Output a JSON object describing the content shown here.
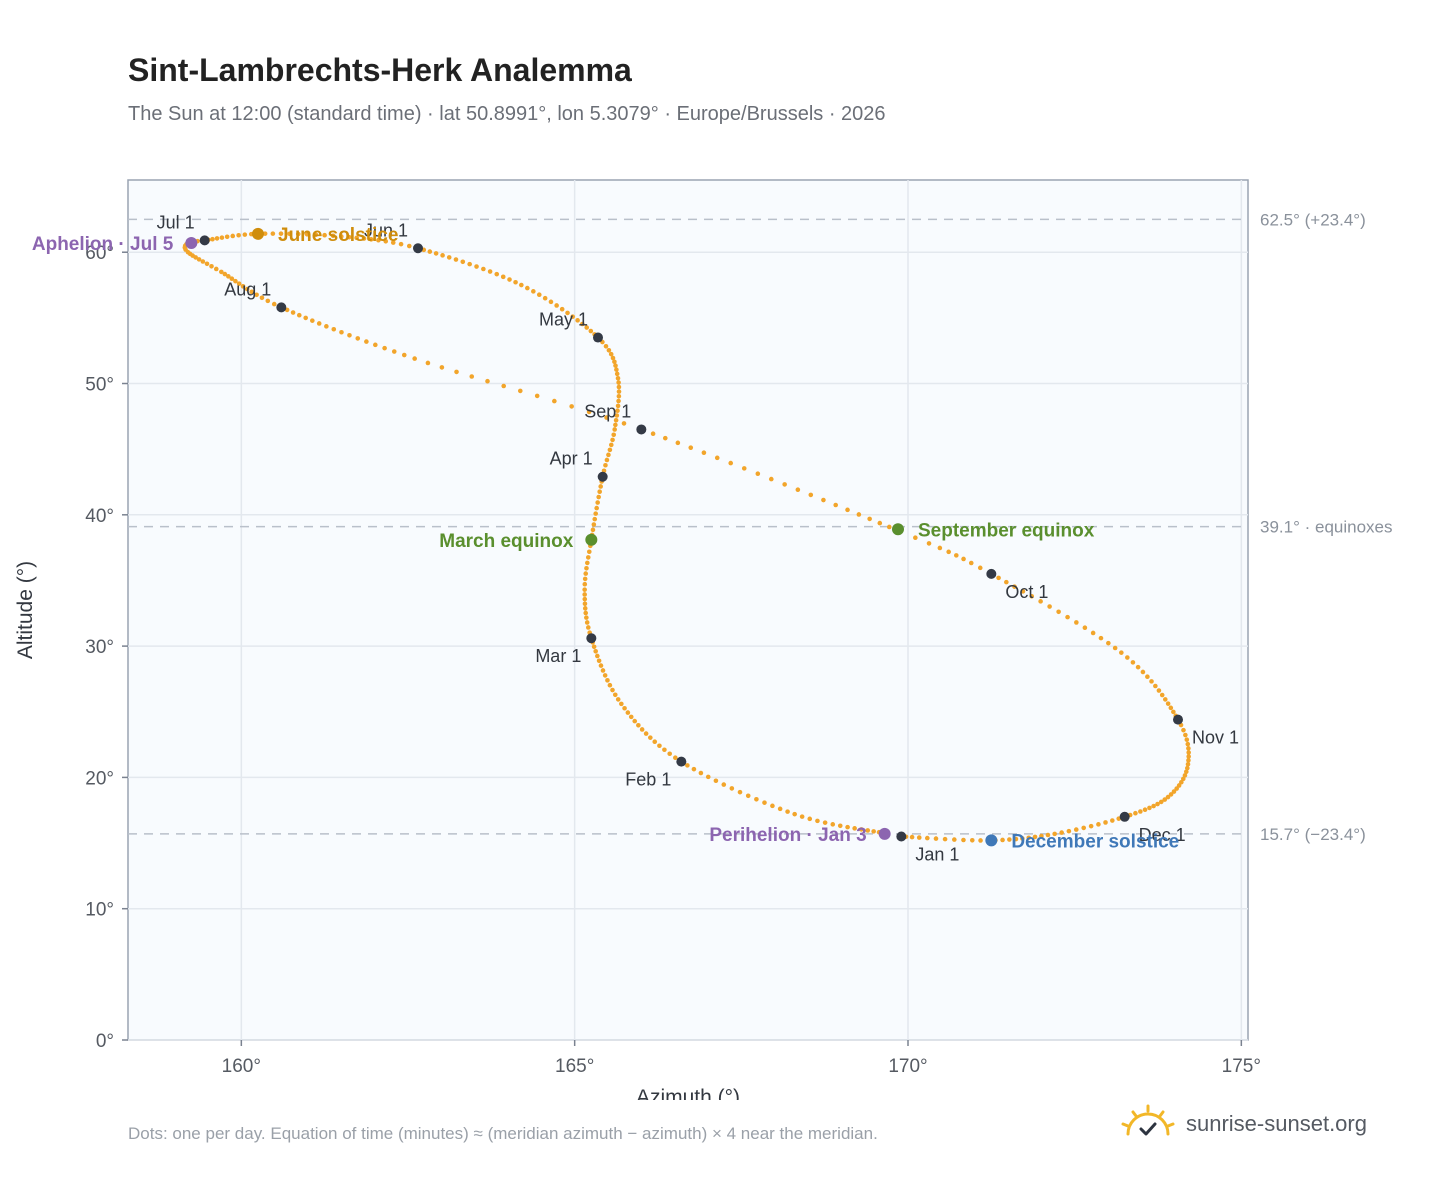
{
  "header": {
    "title": "Sint-Lambrechts-Herk Analemma",
    "subtitle": "The Sun at 12:00 (standard time) · lat 50.8991°, lon 5.3079° · Europe/Brussels · 2026"
  },
  "footer": {
    "note": "Dots: one per day. Equation of time (minutes) ≈ (meridian azimuth − azimuth) × 4 near the meridian.",
    "brand": "sunrise-sunset.org",
    "brand_icon": "sun-logo-icon"
  },
  "colors": {
    "curve": "#f2a52b",
    "month_marker": "#343a46",
    "solstice_june": "#cf8d0c",
    "solstice_december": "#3f78b8",
    "equinox": "#5a8f2e",
    "apsis": "#8c65b0",
    "reference_line": "#b9c0ca",
    "plot_background": "#f8fbfe"
  },
  "chart_data": {
    "type": "scatter",
    "xlabel": "Azimuth (°)",
    "ylabel": "Altitude (°)",
    "xlim": [
      158.3,
      175.1
    ],
    "ylim": [
      0,
      65.5
    ],
    "x_ticks": [
      160,
      165,
      170,
      175
    ],
    "y_ticks": [
      0,
      10,
      20,
      30,
      40,
      50,
      60
    ],
    "x_tick_labels": [
      "160°",
      "165°",
      "170°",
      "175°"
    ],
    "y_tick_labels": [
      "0°",
      "10°",
      "20°",
      "30°",
      "40°",
      "50°",
      "60°"
    ],
    "grid": true,
    "reference_lines": [
      {
        "altitude": 62.5,
        "label": "62.5° (+23.4°)"
      },
      {
        "altitude": 39.1,
        "label": "39.1° · equinoxes"
      },
      {
        "altitude": 15.7,
        "label": "15.7° (−23.4°)"
      }
    ],
    "anchors": [
      {
        "day": 1,
        "az": 169.9,
        "alt": 15.5
      },
      {
        "day": 3,
        "az": 169.7,
        "alt": 15.7
      },
      {
        "day": 17,
        "az": 168.3,
        "alt": 17.2
      },
      {
        "day": 32,
        "az": 166.6,
        "alt": 21.2
      },
      {
        "day": 46,
        "az": 165.7,
        "alt": 25.6
      },
      {
        "day": 60,
        "az": 165.25,
        "alt": 30.6
      },
      {
        "day": 70,
        "az": 165.15,
        "alt": 34.3
      },
      {
        "day": 79,
        "az": 165.25,
        "alt": 38.1
      },
      {
        "day": 91,
        "az": 165.42,
        "alt": 42.9
      },
      {
        "day": 100,
        "az": 165.6,
        "alt": 46.5
      },
      {
        "day": 111,
        "az": 165.65,
        "alt": 50.4
      },
      {
        "day": 121,
        "az": 165.35,
        "alt": 53.5
      },
      {
        "day": 136,
        "az": 164.2,
        "alt": 57.5
      },
      {
        "day": 152,
        "az": 162.65,
        "alt": 60.3
      },
      {
        "day": 162,
        "az": 161.5,
        "alt": 61.2
      },
      {
        "day": 172,
        "az": 160.25,
        "alt": 61.4
      },
      {
        "day": 182,
        "az": 159.45,
        "alt": 60.9
      },
      {
        "day": 186,
        "az": 159.2,
        "alt": 60.7
      },
      {
        "day": 191,
        "az": 159.2,
        "alt": 60.0
      },
      {
        "day": 200,
        "az": 159.7,
        "alt": 58.5
      },
      {
        "day": 213,
        "az": 160.6,
        "alt": 55.8
      },
      {
        "day": 230,
        "az": 162.6,
        "alt": 51.9
      },
      {
        "day": 244,
        "az": 166.0,
        "alt": 46.5
      },
      {
        "day": 265,
        "az": 169.85,
        "alt": 38.8
      },
      {
        "day": 274,
        "az": 171.25,
        "alt": 35.5
      },
      {
        "day": 290,
        "az": 173.2,
        "alt": 29.5
      },
      {
        "day": 305,
        "az": 174.05,
        "alt": 24.4
      },
      {
        "day": 315,
        "az": 174.2,
        "alt": 21.0
      },
      {
        "day": 325,
        "az": 173.9,
        "alt": 18.5
      },
      {
        "day": 335,
        "az": 173.25,
        "alt": 17.0
      },
      {
        "day": 345,
        "az": 172.2,
        "alt": 15.7
      },
      {
        "day": 355,
        "az": 171.2,
        "alt": 15.2
      },
      {
        "day": 366,
        "az": 169.9,
        "alt": 15.5
      }
    ],
    "month_markers": [
      {
        "label": "Jan 1",
        "az": 169.9,
        "alt": 15.5,
        "label_pos": "below-right"
      },
      {
        "label": "Feb 1",
        "az": 166.6,
        "alt": 21.2,
        "label_pos": "below-left"
      },
      {
        "label": "Mar 1",
        "az": 165.25,
        "alt": 30.6,
        "label_pos": "below-left"
      },
      {
        "label": "Apr 1",
        "az": 165.42,
        "alt": 42.9,
        "label_pos": "above-left"
      },
      {
        "label": "May 1",
        "az": 165.35,
        "alt": 53.5,
        "label_pos": "above-left"
      },
      {
        "label": "Jun 1",
        "az": 162.65,
        "alt": 60.3,
        "label_pos": "above-left"
      },
      {
        "label": "Jul 1",
        "az": 159.45,
        "alt": 60.9,
        "label_pos": "above-left"
      },
      {
        "label": "Aug 1",
        "az": 160.6,
        "alt": 55.8,
        "label_pos": "above-left"
      },
      {
        "label": "Sep 1",
        "az": 166.0,
        "alt": 46.5,
        "label_pos": "above-left"
      },
      {
        "label": "Oct 1",
        "az": 171.25,
        "alt": 35.5,
        "label_pos": "below-right"
      },
      {
        "label": "Nov 1",
        "az": 174.05,
        "alt": 24.4,
        "label_pos": "below-right"
      },
      {
        "label": "Dec 1",
        "az": 173.25,
        "alt": 17.0,
        "label_pos": "below-right"
      }
    ],
    "events": [
      {
        "label": "June solstice",
        "az": 160.25,
        "alt": 61.4,
        "color_key": "solstice_june",
        "label_pos": "right"
      },
      {
        "label": "December solstice",
        "az": 171.25,
        "alt": 15.2,
        "color_key": "solstice_december",
        "label_pos": "right"
      },
      {
        "label": "March equinox",
        "az": 165.25,
        "alt": 38.1,
        "color_key": "equinox",
        "label_pos": "left"
      },
      {
        "label": "September equinox",
        "az": 169.85,
        "alt": 38.9,
        "color_key": "equinox",
        "label_pos": "right"
      },
      {
        "label": "Aphelion · Jul 5",
        "az": 159.25,
        "alt": 60.7,
        "color_key": "apsis",
        "label_pos": "left"
      },
      {
        "label": "Perihelion · Jan 3",
        "az": 169.65,
        "alt": 15.7,
        "color_key": "apsis",
        "label_pos": "left"
      }
    ]
  }
}
